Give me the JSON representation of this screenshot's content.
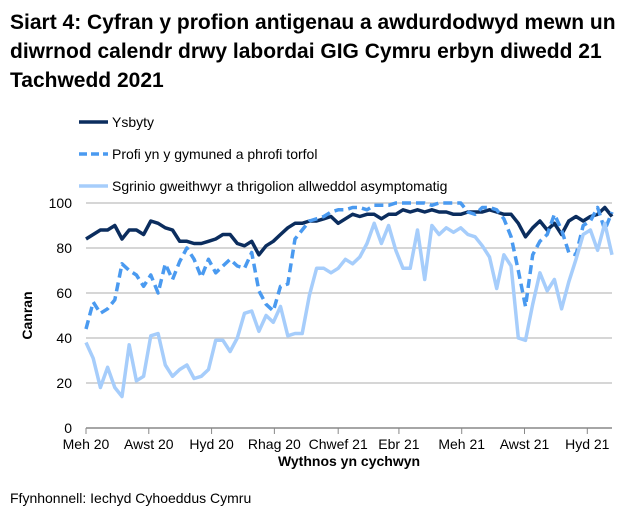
{
  "title": "Siart 4: Cyfran y profion antigenau a awdurdodwyd mewn un diwrnod calendr drwy labordai GIG Cymru erbyn diwedd 21 Tachwedd 2021",
  "source": "Ffynhonnell: Iechyd Cyhoeddus Cymru",
  "chart_data": {
    "type": "line",
    "title": "Siart 4: Cyfran y profion antigenau a awdurdodwyd mewn un diwrnod calendr drwy labordai GIG Cymru erbyn diwedd 21 Tachwedd 2021",
    "xlabel": "Wythnos yn cychwyn",
    "ylabel": "Canran",
    "ylim": [
      0,
      100
    ],
    "yticks": [
      0,
      20,
      40,
      60,
      80,
      100
    ],
    "grid": true,
    "legend_placement": "top",
    "xtick_labels": [
      "Meh 20",
      "Awst 20",
      "Hyd 20",
      "Rhag 20",
      "Chwef 21",
      "Ebr 21",
      "Meh 21",
      "Awst 21",
      "Hyd 21"
    ],
    "xtick_dates": [
      "2020-06-01",
      "2020-08-01",
      "2020-10-01",
      "2020-12-01",
      "2021-02-01",
      "2021-04-01",
      "2021-06-01",
      "2021-08-01",
      "2021-10-01"
    ],
    "x": [
      "2020-06-01",
      "2020-06-08",
      "2020-06-15",
      "2020-06-22",
      "2020-06-29",
      "2020-07-06",
      "2020-07-13",
      "2020-07-20",
      "2020-07-27",
      "2020-08-03",
      "2020-08-10",
      "2020-08-17",
      "2020-08-24",
      "2020-08-31",
      "2020-09-07",
      "2020-09-14",
      "2020-09-21",
      "2020-09-28",
      "2020-10-05",
      "2020-10-12",
      "2020-10-19",
      "2020-10-26",
      "2020-11-02",
      "2020-11-09",
      "2020-11-16",
      "2020-11-23",
      "2020-11-30",
      "2020-12-07",
      "2020-12-14",
      "2020-12-21",
      "2020-12-28",
      "2021-01-04",
      "2021-01-11",
      "2021-01-18",
      "2021-01-25",
      "2021-02-01",
      "2021-02-08",
      "2021-02-15",
      "2021-02-22",
      "2021-03-01",
      "2021-03-08",
      "2021-03-15",
      "2021-03-22",
      "2021-03-29",
      "2021-04-05",
      "2021-04-12",
      "2021-04-19",
      "2021-04-26",
      "2021-05-03",
      "2021-05-10",
      "2021-05-17",
      "2021-05-24",
      "2021-05-31",
      "2021-06-07",
      "2021-06-14",
      "2021-06-21",
      "2021-06-28",
      "2021-07-05",
      "2021-07-12",
      "2021-07-19",
      "2021-07-26",
      "2021-08-02",
      "2021-08-09",
      "2021-08-16",
      "2021-08-23",
      "2021-08-30",
      "2021-09-06",
      "2021-09-13",
      "2021-09-20",
      "2021-09-27",
      "2021-10-04",
      "2021-10-11",
      "2021-10-18",
      "2021-10-25"
    ],
    "series": [
      {
        "name": "Ysbyty",
        "color": "#0b2d5e",
        "style": "solid",
        "values": [
          84,
          86,
          88,
          88,
          90,
          84,
          88,
          88,
          86,
          92,
          91,
          89,
          88,
          83,
          83,
          82,
          82,
          83,
          84,
          86,
          86,
          82,
          81,
          83,
          77,
          81,
          83,
          86,
          89,
          91,
          91,
          92,
          92,
          93,
          94,
          91,
          93,
          95,
          94,
          95,
          95,
          93,
          95,
          95,
          97,
          96,
          97,
          96,
          97,
          96,
          96,
          95,
          95,
          96,
          96,
          96,
          97,
          96,
          95,
          95,
          91,
          85,
          89,
          92,
          88,
          91,
          86,
          92,
          94,
          92,
          94,
          95,
          98,
          94
        ]
      },
      {
        "name": "Profi yn y gymuned a phrofi torfol",
        "color": "#4a9af0",
        "style": "dashed",
        "values": [
          44,
          56,
          51,
          53,
          57,
          73,
          70,
          68,
          63,
          68,
          60,
          73,
          66,
          74,
          80,
          75,
          67,
          75,
          69,
          72,
          75,
          72,
          71,
          78,
          61,
          55,
          52,
          63,
          64,
          84,
          88,
          92,
          93,
          94,
          96,
          97,
          97,
          98,
          98,
          97,
          99,
          99,
          99,
          100,
          100,
          100,
          100,
          100,
          99,
          100,
          100,
          100,
          100,
          96,
          95,
          98,
          98,
          97,
          93,
          85,
          70,
          54,
          77,
          83,
          86,
          95,
          88,
          78,
          77,
          90,
          92,
          98,
          88,
          96
        ]
      },
      {
        "name": "Sgrinio gweithwyr a thrigolion allweddol asymptomatig",
        "color": "#a6cdfb",
        "style": "solid",
        "values": [
          38,
          31,
          18,
          27,
          18,
          14,
          37,
          21,
          23,
          41,
          42,
          28,
          23,
          26,
          28,
          22,
          23,
          26,
          39,
          39,
          34,
          40,
          51,
          52,
          43,
          50,
          47,
          54,
          41,
          42,
          42,
          59,
          71,
          71,
          69,
          71,
          75,
          73,
          76,
          82,
          91,
          82,
          90,
          79,
          71,
          71,
          88,
          66,
          90,
          86,
          89,
          87,
          89,
          86,
          85,
          81,
          76,
          62,
          77,
          72,
          40,
          39,
          55,
          69,
          61,
          66,
          53,
          65,
          75,
          86,
          88,
          79,
          91,
          77
        ]
      }
    ]
  }
}
